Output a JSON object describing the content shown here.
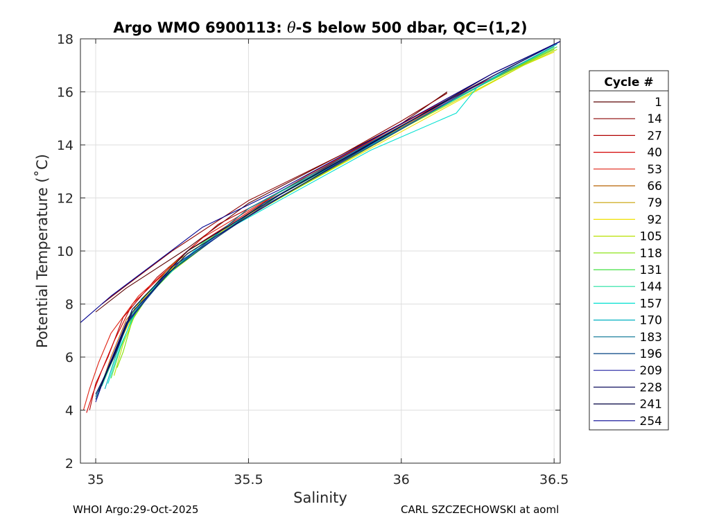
{
  "chart_data": {
    "type": "line",
    "title_prefix": "Argo WMO 6900113: ",
    "title_theta": "θ",
    "title_suffix": "-S below 500 dbar,  QC=(1,2)",
    "xlabel": "Salinity",
    "ylabel": "Potential Temperature (˚C)",
    "xlim": [
      34.95,
      36.52
    ],
    "ylim": [
      2,
      18
    ],
    "xticks": [
      35,
      35.5,
      36,
      36.5
    ],
    "xtick_labels": [
      "35",
      "35.5",
      "36",
      "36.5"
    ],
    "yticks": [
      2,
      4,
      6,
      8,
      10,
      12,
      14,
      16,
      18
    ],
    "ytick_labels": [
      "2",
      "4",
      "6",
      "8",
      "10",
      "12",
      "14",
      "16",
      "18"
    ],
    "grid": true,
    "legend": {
      "title": "Cycle #",
      "placement": "outside-right",
      "entries": [
        {
          "label": "1",
          "color": "#5a0000"
        },
        {
          "label": "14",
          "color": "#8b0000"
        },
        {
          "label": "27",
          "color": "#b00000"
        },
        {
          "label": "40",
          "color": "#d40000"
        },
        {
          "label": "53",
          "color": "#e02010"
        },
        {
          "label": "66",
          "color": "#b86000"
        },
        {
          "label": "79",
          "color": "#c8a000"
        },
        {
          "label": "92",
          "color": "#f0e000"
        },
        {
          "label": "105",
          "color": "#b8e000"
        },
        {
          "label": "118",
          "color": "#80e000"
        },
        {
          "label": "131",
          "color": "#40e040"
        },
        {
          "label": "144",
          "color": "#20e0a0"
        },
        {
          "label": "157",
          "color": "#00e0d0"
        },
        {
          "label": "170",
          "color": "#00b0c0"
        },
        {
          "label": "183",
          "color": "#007090"
        },
        {
          "label": "196",
          "color": "#004080"
        },
        {
          "label": "209",
          "color": "#2020a0"
        },
        {
          "label": "228",
          "color": "#101060"
        },
        {
          "label": "241",
          "color": "#000040"
        },
        {
          "label": "254",
          "color": "#000090"
        }
      ]
    },
    "series": [
      {
        "name": "1",
        "color": "#5a0000",
        "points": [
          [
            35.0,
            7.7
          ],
          [
            35.1,
            8.6
          ],
          [
            35.3,
            10.1
          ],
          [
            35.5,
            11.8
          ],
          [
            35.8,
            13.6
          ],
          [
            36.0,
            14.8
          ],
          [
            36.15,
            16.0
          ]
        ]
      },
      {
        "name": "14",
        "color": "#8b0000",
        "points": [
          [
            35.02,
            8.0
          ],
          [
            35.1,
            8.7
          ],
          [
            35.25,
            10.0
          ],
          [
            35.5,
            11.9
          ],
          [
            35.8,
            13.6
          ],
          [
            36.0,
            14.9
          ],
          [
            36.15,
            15.95
          ]
        ]
      },
      {
        "name": "27",
        "color": "#b00000",
        "points": [
          [
            34.98,
            4.0
          ],
          [
            35.0,
            5.0
          ],
          [
            35.04,
            6.0
          ],
          [
            35.09,
            7.5
          ],
          [
            35.2,
            9.0
          ],
          [
            35.4,
            11.0
          ],
          [
            35.7,
            12.8
          ],
          [
            36.0,
            14.8
          ],
          [
            36.3,
            16.7
          ],
          [
            36.52,
            17.9
          ]
        ]
      },
      {
        "name": "40",
        "color": "#d40000",
        "points": [
          [
            34.97,
            3.9
          ],
          [
            34.99,
            4.6
          ],
          [
            35.02,
            5.5
          ],
          [
            35.06,
            6.6
          ],
          [
            35.12,
            8.0
          ],
          [
            35.3,
            10.0
          ],
          [
            35.6,
            12.2
          ],
          [
            36.0,
            14.8
          ],
          [
            36.5,
            17.7
          ]
        ]
      },
      {
        "name": "53",
        "color": "#e02010",
        "points": [
          [
            34.96,
            4.0
          ],
          [
            34.98,
            4.8
          ],
          [
            35.01,
            5.8
          ],
          [
            35.05,
            6.9
          ],
          [
            35.14,
            8.3
          ],
          [
            35.35,
            10.5
          ],
          [
            35.7,
            12.9
          ],
          [
            36.1,
            15.4
          ],
          [
            36.5,
            17.8
          ]
        ]
      },
      {
        "name": "66",
        "color": "#b86000",
        "points": [
          [
            35.02,
            5.0
          ],
          [
            35.05,
            6.0
          ],
          [
            35.1,
            7.4
          ],
          [
            35.25,
            9.5
          ],
          [
            35.55,
            11.8
          ],
          [
            35.85,
            13.7
          ],
          [
            36.1,
            15.3
          ],
          [
            36.5,
            17.7
          ]
        ]
      },
      {
        "name": "79",
        "color": "#c8a000",
        "points": [
          [
            35.03,
            5.2
          ],
          [
            35.07,
            6.4
          ],
          [
            35.13,
            7.9
          ],
          [
            35.3,
            9.9
          ],
          [
            35.6,
            12.1
          ],
          [
            35.95,
            14.3
          ],
          [
            36.3,
            16.5
          ],
          [
            36.5,
            17.6
          ]
        ]
      },
      {
        "name": "92",
        "color": "#f0e000",
        "points": [
          [
            35.05,
            5.5
          ],
          [
            35.08,
            6.6
          ],
          [
            35.14,
            8.0
          ],
          [
            35.3,
            10.0
          ],
          [
            35.65,
            12.3
          ],
          [
            36.0,
            14.5
          ],
          [
            36.4,
            17.0
          ],
          [
            36.5,
            17.5
          ]
        ]
      },
      {
        "name": "105",
        "color": "#b8e000",
        "points": [
          [
            35.06,
            5.3
          ],
          [
            35.09,
            6.5
          ],
          [
            35.15,
            8.2
          ],
          [
            35.3,
            9.9
          ],
          [
            35.6,
            12.0
          ],
          [
            36.0,
            14.6
          ],
          [
            36.4,
            17.0
          ],
          [
            36.51,
            17.6
          ]
        ]
      },
      {
        "name": "118",
        "color": "#80e000",
        "points": [
          [
            35.07,
            5.6
          ],
          [
            35.09,
            6.2
          ],
          [
            35.12,
            7.4
          ],
          [
            35.2,
            8.8
          ],
          [
            35.45,
            11.0
          ],
          [
            35.85,
            13.6
          ],
          [
            36.2,
            15.9
          ],
          [
            36.5,
            17.6
          ]
        ]
      },
      {
        "name": "131",
        "color": "#40e040",
        "points": [
          [
            35.05,
            5.2
          ],
          [
            35.08,
            6.3
          ],
          [
            35.13,
            7.8
          ],
          [
            35.28,
            9.6
          ],
          [
            35.6,
            12.1
          ],
          [
            36.0,
            14.6
          ],
          [
            36.35,
            16.8
          ],
          [
            36.51,
            17.7
          ]
        ]
      },
      {
        "name": "144",
        "color": "#20e0a0",
        "points": [
          [
            35.02,
            4.9
          ],
          [
            35.06,
            6.0
          ],
          [
            35.11,
            7.5
          ],
          [
            35.22,
            9.0
          ],
          [
            35.5,
            11.6
          ],
          [
            35.9,
            14.0
          ],
          [
            36.25,
            16.2
          ],
          [
            36.5,
            17.7
          ]
        ]
      },
      {
        "name": "157",
        "color": "#00e0d0",
        "points": [
          [
            35.04,
            5.0
          ],
          [
            35.08,
            6.4
          ],
          [
            35.15,
            8.2
          ],
          [
            35.35,
            10.3
          ],
          [
            35.6,
            11.9
          ],
          [
            35.9,
            13.8
          ],
          [
            36.18,
            15.2
          ],
          [
            36.25,
            16.2
          ],
          [
            36.4,
            17.2
          ],
          [
            36.5,
            17.8
          ]
        ]
      },
      {
        "name": "170",
        "color": "#00b0c0",
        "points": [
          [
            35.03,
            4.8
          ],
          [
            35.07,
            6.2
          ],
          [
            35.12,
            7.8
          ],
          [
            35.25,
            9.4
          ],
          [
            35.55,
            11.8
          ],
          [
            35.95,
            14.3
          ],
          [
            36.3,
            16.5
          ],
          [
            36.51,
            17.8
          ]
        ]
      },
      {
        "name": "183",
        "color": "#007090",
        "points": [
          [
            35.0,
            4.5
          ],
          [
            35.04,
            5.6
          ],
          [
            35.1,
            7.2
          ],
          [
            35.22,
            9.0
          ],
          [
            35.5,
            11.6
          ],
          [
            35.9,
            14.1
          ],
          [
            36.3,
            16.6
          ],
          [
            36.52,
            17.9
          ]
        ]
      },
      {
        "name": "196",
        "color": "#004080",
        "points": [
          [
            35.0,
            4.4
          ],
          [
            35.05,
            5.8
          ],
          [
            35.11,
            7.4
          ],
          [
            35.24,
            9.2
          ],
          [
            35.55,
            11.8
          ],
          [
            35.95,
            14.4
          ],
          [
            36.3,
            16.6
          ],
          [
            36.52,
            17.9
          ]
        ]
      },
      {
        "name": "209",
        "color": "#2020a0",
        "points": [
          [
            35.0,
            4.3
          ],
          [
            35.04,
            5.6
          ],
          [
            35.1,
            7.3
          ],
          [
            35.25,
            9.4
          ],
          [
            35.55,
            11.7
          ],
          [
            36.0,
            14.6
          ],
          [
            36.3,
            16.6
          ],
          [
            36.52,
            17.9
          ]
        ]
      },
      {
        "name": "228",
        "color": "#101060",
        "points": [
          [
            35.0,
            4.6
          ],
          [
            35.06,
            6.0
          ],
          [
            35.12,
            7.7
          ],
          [
            35.3,
            9.9
          ],
          [
            35.6,
            12.0
          ],
          [
            36.0,
            14.7
          ],
          [
            36.3,
            16.6
          ],
          [
            36.52,
            17.9
          ]
        ]
      },
      {
        "name": "241",
        "color": "#000040",
        "points": [
          [
            35.01,
            4.7
          ],
          [
            35.06,
            6.1
          ],
          [
            35.12,
            7.8
          ],
          [
            35.3,
            10.0
          ],
          [
            35.6,
            12.1
          ],
          [
            36.0,
            14.7
          ],
          [
            36.3,
            16.7
          ],
          [
            36.52,
            17.9
          ]
        ]
      },
      {
        "name": "254",
        "color": "#000090",
        "points": [
          [
            34.95,
            7.3
          ],
          [
            35.05,
            8.3
          ],
          [
            35.2,
            9.6
          ],
          [
            35.35,
            10.9
          ],
          [
            35.6,
            12.3
          ],
          [
            36.0,
            14.8
          ],
          [
            36.3,
            16.7
          ],
          [
            36.52,
            17.9
          ]
        ]
      }
    ]
  },
  "footer": {
    "left": "WHOI Argo:29-Oct-2025",
    "right": "CARL SZCZECHOWSKI at aoml"
  }
}
